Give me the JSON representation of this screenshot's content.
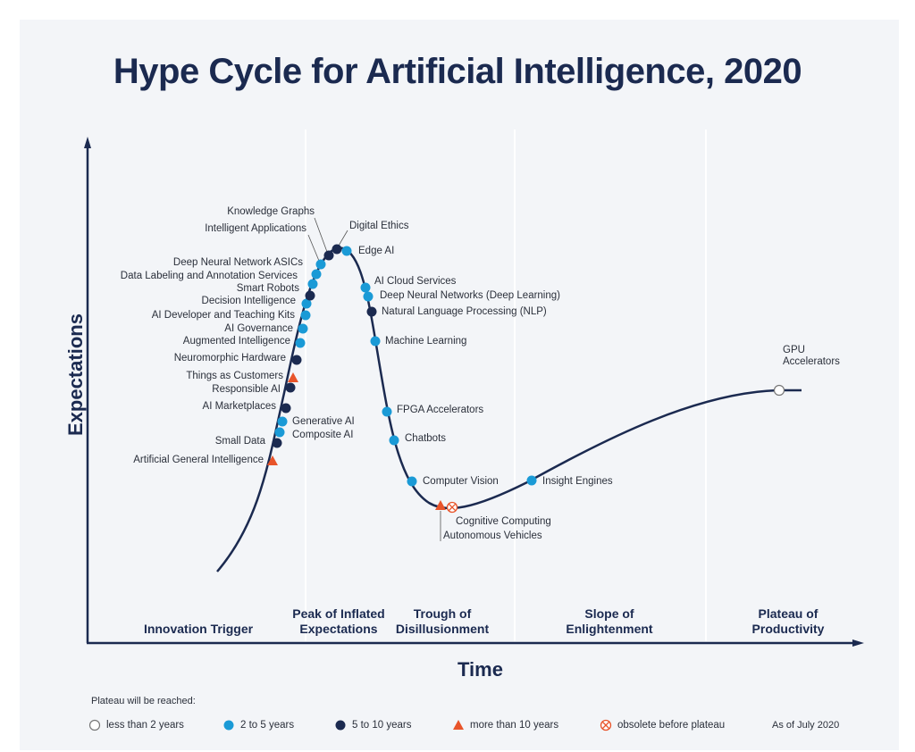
{
  "title": "Hype Cycle for Artificial Intelligence, 2020",
  "y_axis_label": "Expectations",
  "x_axis_label": "Time",
  "phases": [
    "Innovation Trigger",
    "Peak of Inflated Expectations",
    "Trough of Disillusionment",
    "Slope of Enlightenment",
    "Plateau of Productivity"
  ],
  "legend": {
    "title": "Plateau will be reached:",
    "items": [
      {
        "label": "less than 2 years",
        "technologies": [
          "GPU Accelerators"
        ]
      },
      {
        "label": "2 to 5 years",
        "technologies": [
          "Intelligent Applications",
          "Deep Neural Network ASICs",
          "Data Labeling and Annotation Services",
          "Decision Intelligence",
          "AI Developer and Teaching Kits",
          "AI Governance",
          "Augmented Intelligence",
          "Generative AI",
          "Composite AI",
          "Edge AI",
          "AI Cloud Services",
          "Deep Neural Networks (Deep Learning)",
          "Machine Learning",
          "FPGA Accelerators",
          "Chatbots",
          "Computer Vision",
          "Insight Engines"
        ]
      },
      {
        "label": "5 to 10 years",
        "technologies": [
          "Knowledge Graphs",
          "Digital Ethics",
          "Smart Robots",
          "Natural Language Processing (NLP)",
          "Neuromorphic Hardware",
          "Responsible AI",
          "AI Marketplaces",
          "Small Data"
        ]
      },
      {
        "label": "more than 10 years",
        "technologies": [
          "Things as Customers",
          "Artificial General Intelligence",
          "Autonomous Vehicles"
        ]
      },
      {
        "label": "obsolete before plateau",
        "technologies": [
          "Cognitive Computing"
        ]
      }
    ]
  },
  "note": "As of July 2020"
}
